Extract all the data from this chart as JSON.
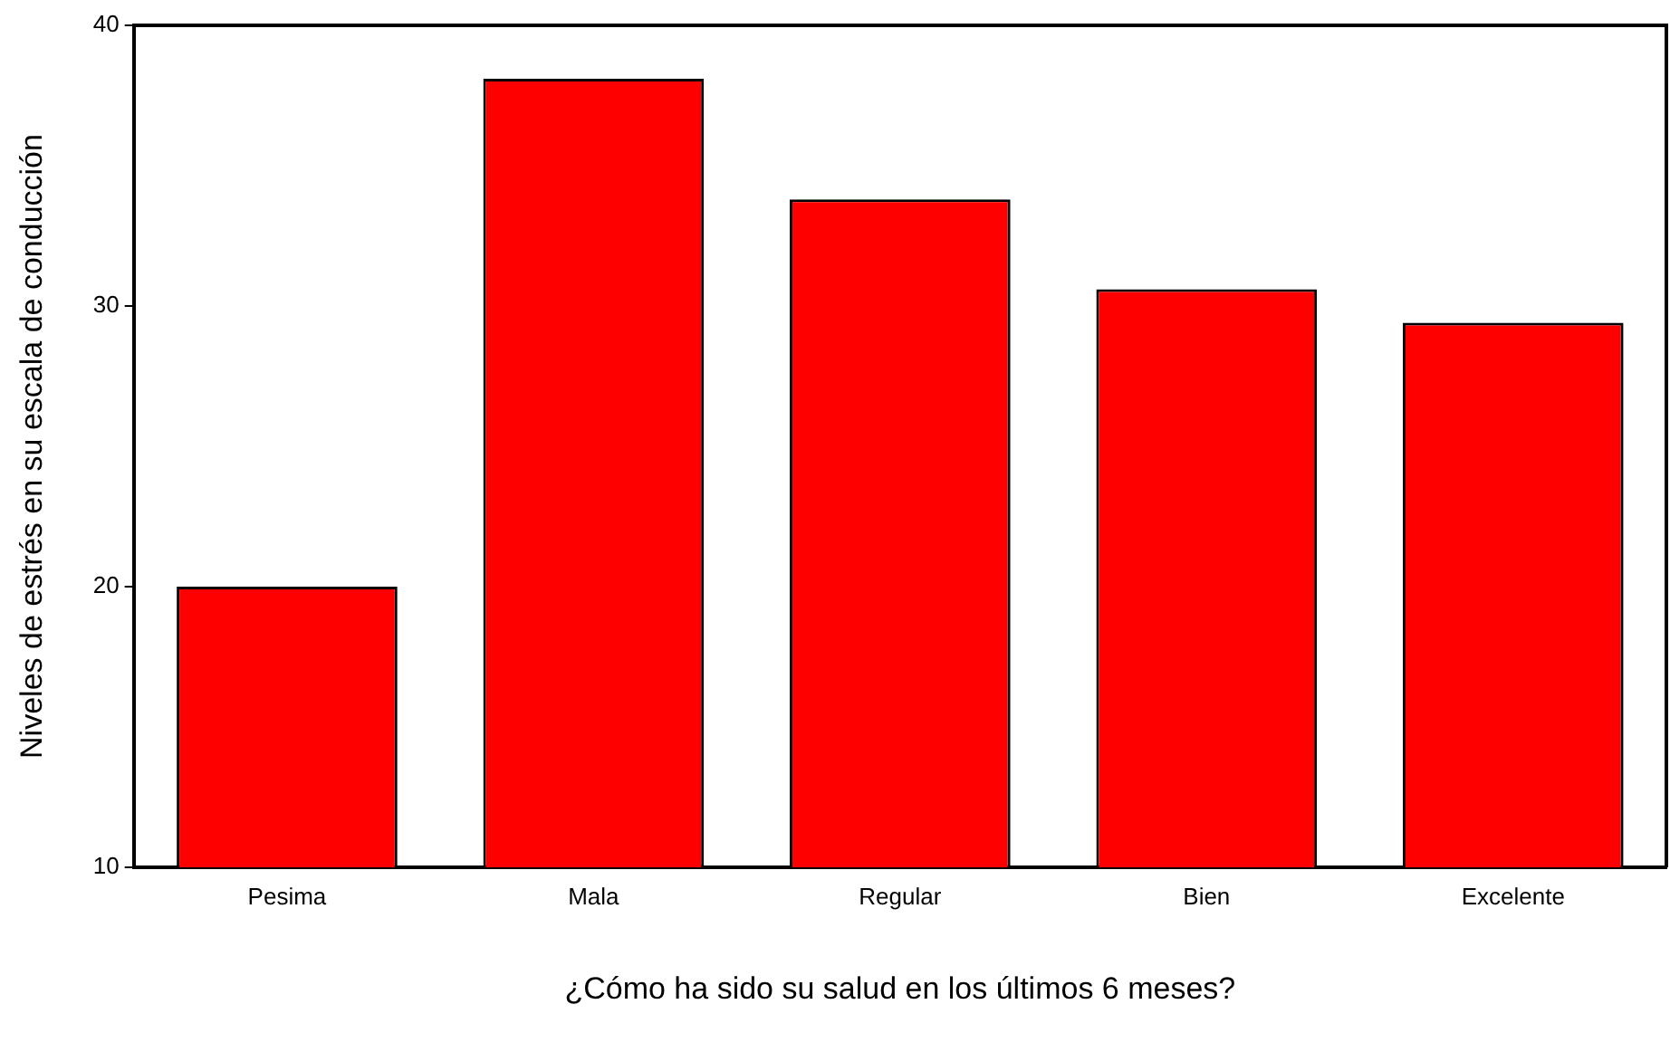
{
  "chart_data": {
    "type": "bar",
    "xlabel": "¿Cómo ha sido su salud en los últimos 6 meses?",
    "ylabel": "Niveles de estrés en su escala de conducción",
    "categories": [
      "Pesima",
      "Mala",
      "Regular",
      "Bien",
      "Excelente"
    ],
    "values": [
      20.0,
      38.1,
      33.8,
      30.6,
      29.4
    ],
    "color": "#ff0000",
    "ylim": [
      10,
      40
    ],
    "yticks": [
      10,
      20,
      30,
      40
    ],
    "grid": false,
    "legend": false
  }
}
